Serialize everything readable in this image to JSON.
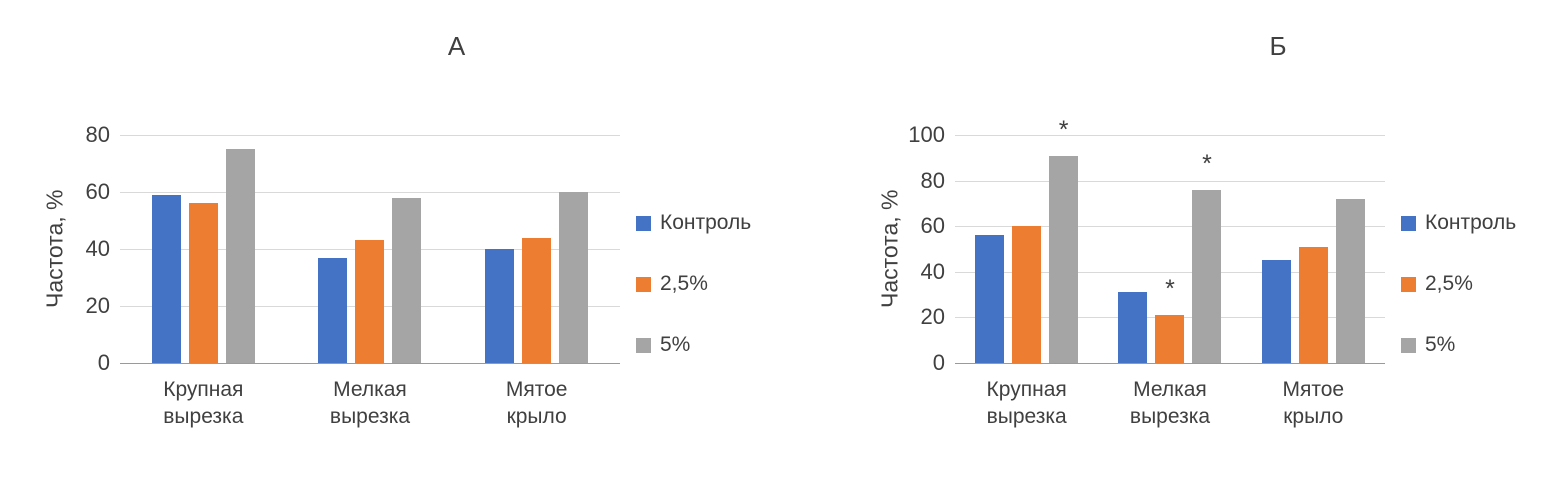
{
  "figure": {
    "background": "#ffffff"
  },
  "chart_data": [
    {
      "type": "bar",
      "title": "А",
      "ylabel": "Частота, %",
      "categories": [
        "Крупная вырезка",
        "Мелкая вырезка",
        "Мятое крыло"
      ],
      "series": [
        {
          "name": "Контроль",
          "color": "#4472C4",
          "values": [
            59,
            37,
            40
          ]
        },
        {
          "name": "2,5%",
          "color": "#ED7D31",
          "values": [
            56,
            43,
            44
          ]
        },
        {
          "name": "5%",
          "color": "#A5A5A5",
          "values": [
            75,
            58,
            60
          ]
        }
      ],
      "ylim": [
        0,
        80
      ],
      "ytick_step": 20,
      "grid": true,
      "legend_position": "right",
      "annotations": []
    },
    {
      "type": "bar",
      "title": "Б",
      "ylabel": "Частота, %",
      "categories": [
        "Крупная вырезка",
        "Мелкая вырезка",
        "Мятое крыло"
      ],
      "series": [
        {
          "name": "Контроль",
          "color": "#4472C4",
          "values": [
            56,
            31,
            45
          ]
        },
        {
          "name": "2,5%",
          "color": "#ED7D31",
          "values": [
            60,
            21,
            51
          ]
        },
        {
          "name": "5%",
          "color": "#A5A5A5",
          "values": [
            91,
            76,
            72
          ]
        }
      ],
      "ylim": [
        0,
        100
      ],
      "ytick_step": 20,
      "grid": true,
      "legend_position": "right",
      "annotations": [
        {
          "category_index": 0,
          "series_index": 2,
          "text": "*"
        },
        {
          "category_index": 1,
          "series_index": 1,
          "text": "*"
        },
        {
          "category_index": 1,
          "series_index": 2,
          "text": "*"
        }
      ]
    }
  ]
}
